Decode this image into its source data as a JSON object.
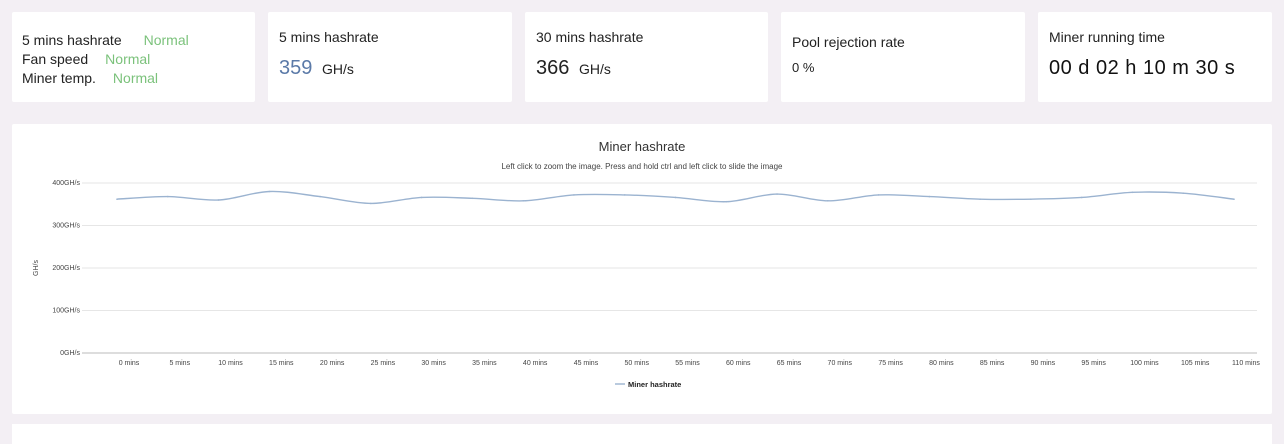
{
  "status_card": {
    "rows": [
      {
        "label": "5 mins hashrate",
        "value": "Normal"
      },
      {
        "label": "Fan speed",
        "value": "Normal"
      },
      {
        "label": "Miner temp.",
        "value": "Normal"
      }
    ]
  },
  "hashrate_5m": {
    "title": "5 mins hashrate",
    "value": "359",
    "unit": "GH/s"
  },
  "hashrate_30m": {
    "title": "30 mins hashrate",
    "value": "366",
    "unit": "GH/s"
  },
  "rejection": {
    "title": "Pool rejection rate",
    "value": "0 %"
  },
  "runtime": {
    "title": "Miner running time",
    "value": "00 d 02 h 10 m 30 s"
  },
  "colors": {
    "normal": "#7bc27b",
    "accent_value": "#5b7aa8",
    "series": "#9bb3d0"
  },
  "chart_data": {
    "type": "line",
    "title": "Miner hashrate",
    "subtitle": "Left click to zoom the image. Press and hold ctrl and left click to slide the image",
    "ylabel": "GH/s",
    "xlabel": "",
    "ylim": [
      0,
      400
    ],
    "y_ticks": [
      "0GH/s",
      "100GH/s",
      "200GH/s",
      "300GH/s",
      "400GH/s"
    ],
    "y_tick_values": [
      0,
      100,
      200,
      300,
      400
    ],
    "categories": [
      "0 mins",
      "5 mins",
      "10 mins",
      "15 mins",
      "20 mins",
      "25 mins",
      "30 mins",
      "35 mins",
      "40 mins",
      "45 mins",
      "50 mins",
      "55 mins",
      "60 mins",
      "65 mins",
      "70 mins",
      "75 mins",
      "80 mins",
      "85 mins",
      "90 mins",
      "95 mins",
      "100 mins",
      "105 mins",
      "110 mins"
    ],
    "grid": true,
    "legend_position": "bottom-center",
    "series": [
      {
        "name": "Miner hashrate",
        "values": [
          362,
          368,
          360,
          380,
          368,
          352,
          366,
          364,
          358,
          372,
          372,
          366,
          356,
          374,
          358,
          372,
          368,
          362,
          362,
          366,
          378,
          376,
          362
        ]
      }
    ]
  }
}
